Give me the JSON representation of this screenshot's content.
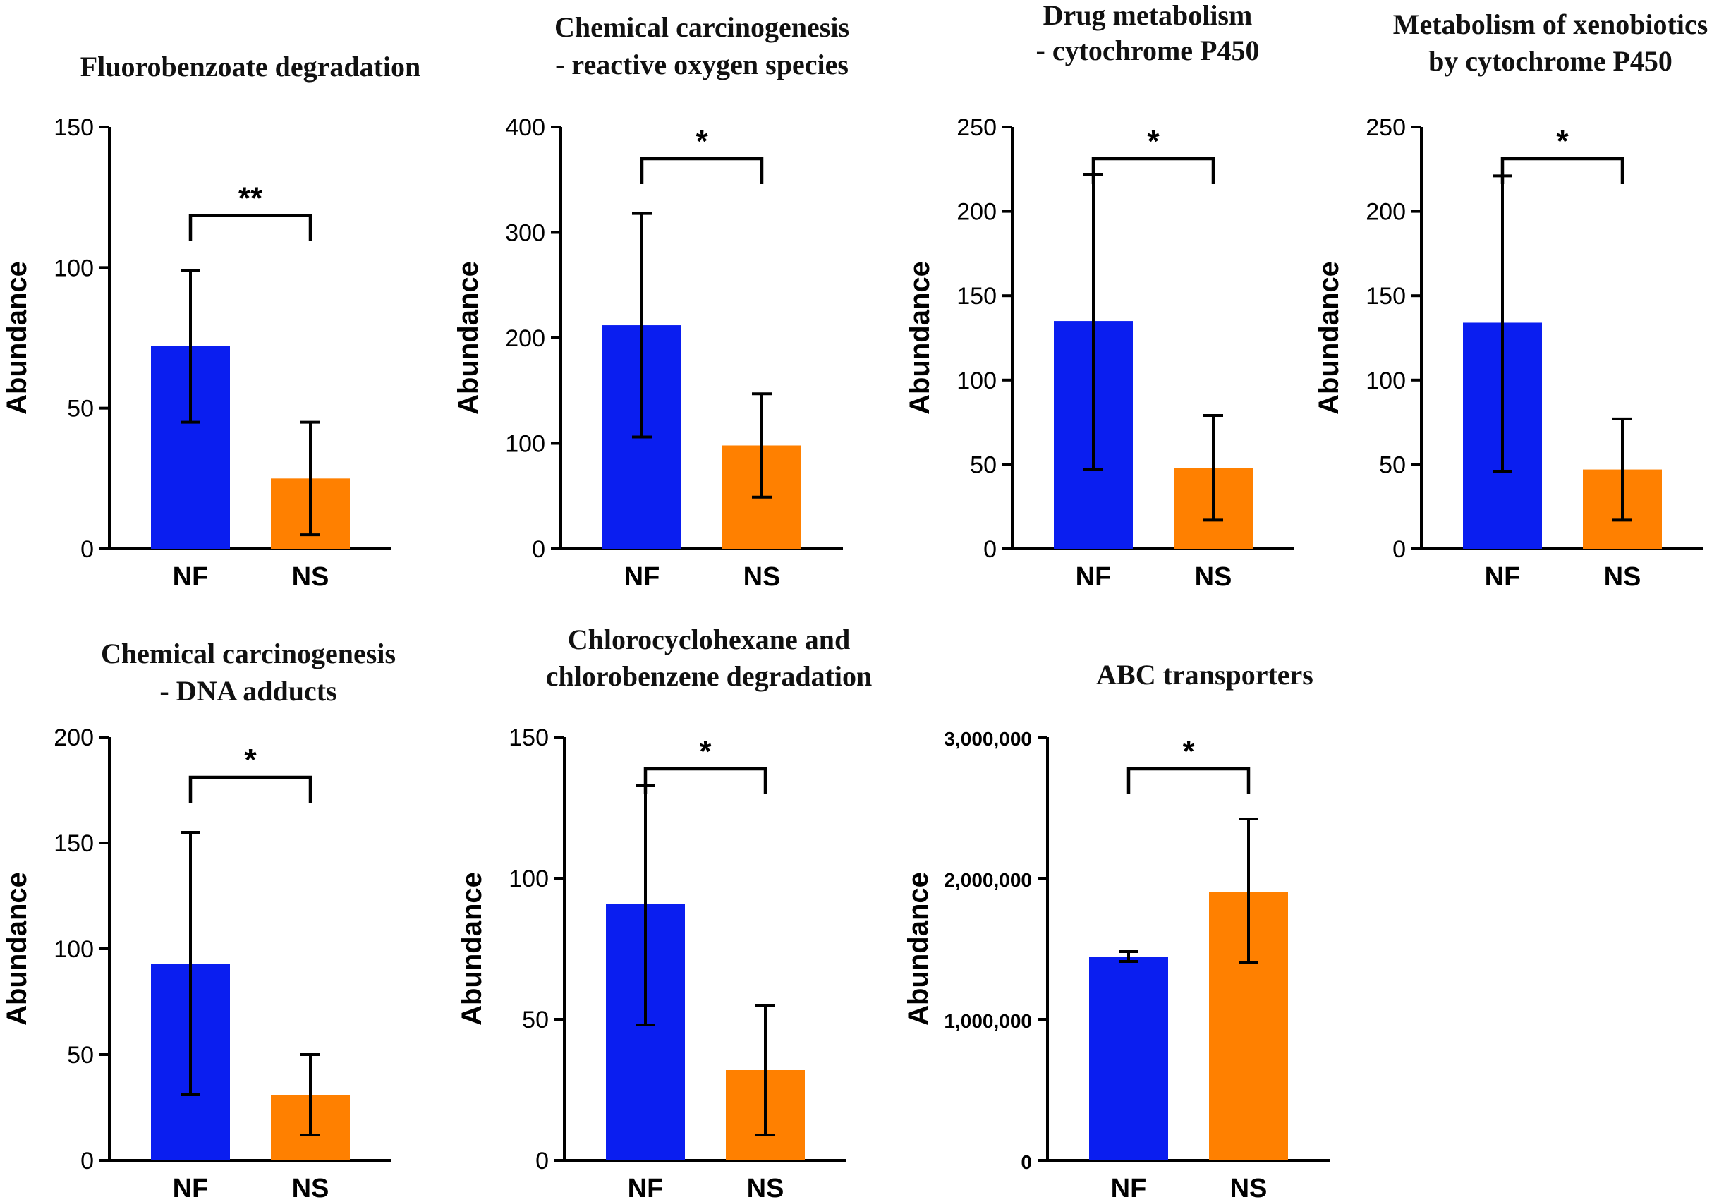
{
  "colors": {
    "NF": "#0a1ef0",
    "NS": "#ff8000"
  },
  "chart_data": [
    {
      "type": "bar",
      "title": [
        "Fluorobenzoate degradation"
      ],
      "ylabel": "Abundance",
      "categories": [
        "NF",
        "NS"
      ],
      "values": [
        72,
        25
      ],
      "errors_lower": [
        45,
        5
      ],
      "errors_upper": [
        99,
        45
      ],
      "ylim": [
        0,
        150
      ],
      "yticks": [
        0,
        50,
        100,
        150
      ],
      "ytick_labels": [
        "0",
        "50",
        "100",
        "150"
      ],
      "significance": "**"
    },
    {
      "type": "bar",
      "title": [
        "Chemical carcinogenesis",
        "- reactive oxygen species"
      ],
      "ylabel": "Abundance",
      "categories": [
        "NF",
        "NS"
      ],
      "values": [
        212,
        98
      ],
      "errors_lower": [
        106,
        49
      ],
      "errors_upper": [
        318,
        147
      ],
      "ylim": [
        0,
        400
      ],
      "yticks": [
        0,
        100,
        200,
        300,
        400
      ],
      "ytick_labels": [
        "0",
        "100",
        "200",
        "300",
        "400"
      ],
      "significance": "*"
    },
    {
      "type": "bar",
      "title": [
        "Drug metabolism",
        "- cytochrome P450"
      ],
      "ylabel": "Abundance",
      "categories": [
        "NF",
        "NS"
      ],
      "values": [
        135,
        48
      ],
      "errors_lower": [
        47,
        17
      ],
      "errors_upper": [
        222,
        79
      ],
      "ylim": [
        0,
        250
      ],
      "yticks": [
        0,
        50,
        100,
        150,
        200,
        250
      ],
      "ytick_labels": [
        "0",
        "50",
        "100",
        "150",
        "200",
        "250"
      ],
      "significance": "*"
    },
    {
      "type": "bar",
      "title": [
        "Metabolism of xenobiotics",
        "by cytochrome P450"
      ],
      "ylabel": "Abundance",
      "categories": [
        "NF",
        "NS"
      ],
      "values": [
        134,
        47
      ],
      "errors_lower": [
        46,
        17
      ],
      "errors_upper": [
        221,
        77
      ],
      "ylim": [
        0,
        250
      ],
      "yticks": [
        0,
        50,
        100,
        150,
        200,
        250
      ],
      "ytick_labels": [
        "0",
        "50",
        "100",
        "150",
        "200",
        "250"
      ],
      "significance": "*"
    },
    {
      "type": "bar",
      "title": [
        "Chemical carcinogenesis",
        "- DNA adducts"
      ],
      "ylabel": "Abundance",
      "categories": [
        "NF",
        "NS"
      ],
      "values": [
        93,
        31
      ],
      "errors_lower": [
        31,
        12
      ],
      "errors_upper": [
        155,
        50
      ],
      "ylim": [
        0,
        200
      ],
      "yticks": [
        0,
        50,
        100,
        150,
        200
      ],
      "ytick_labels": [
        "0",
        "50",
        "100",
        "150",
        "200"
      ],
      "significance": "*"
    },
    {
      "type": "bar",
      "title": [
        "Chlorocyclohexane and",
        "chlorobenzene degradation"
      ],
      "ylabel": "Abundance",
      "categories": [
        "NF",
        "NS"
      ],
      "values": [
        91,
        32
      ],
      "errors_lower": [
        48,
        9
      ],
      "errors_upper": [
        133,
        55
      ],
      "ylim": [
        0,
        150
      ],
      "yticks": [
        0,
        50,
        100,
        150
      ],
      "ytick_labels": [
        "0",
        "50",
        "100",
        "150"
      ],
      "significance": "*"
    },
    {
      "type": "bar",
      "title": [
        "ABC transporters"
      ],
      "ylabel": "Abundance",
      "categories": [
        "NF",
        "NS"
      ],
      "values": [
        1440000,
        1900000
      ],
      "errors_lower": [
        1410000,
        1400000
      ],
      "errors_upper": [
        1480000,
        2420000
      ],
      "ylim": [
        0,
        3000000
      ],
      "yticks": [
        0,
        1000000,
        2000000,
        3000000
      ],
      "ytick_labels": [
        "0",
        "1,000,000",
        "2,000,000",
        "3,000,000"
      ],
      "significance": "*"
    }
  ]
}
